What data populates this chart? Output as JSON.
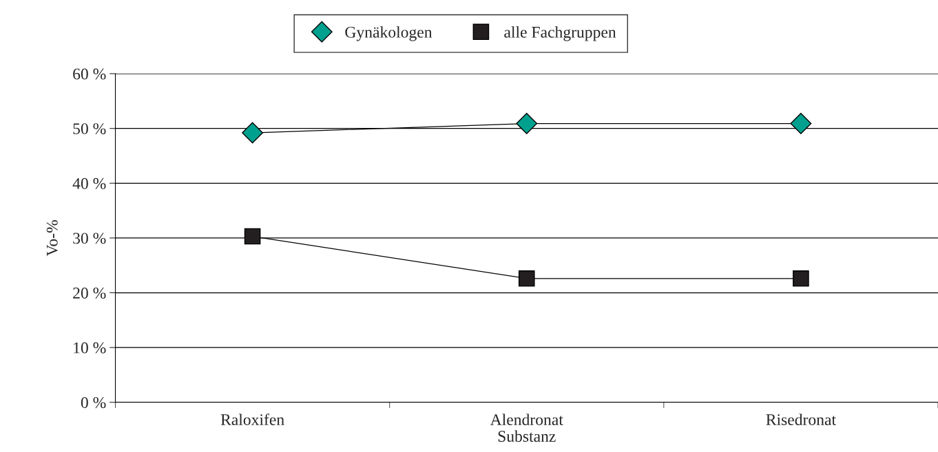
{
  "chart_data": {
    "type": "line",
    "xlabel": "Substanz",
    "ylabel": "Vo-%",
    "categories": [
      "Raloxifen",
      "Alendronat",
      "Risedronat"
    ],
    "series": [
      {
        "name": "Gynäkologen",
        "color": "#00a08e",
        "marker": "diamond",
        "values": [
          49.2,
          50.9,
          50.9
        ]
      },
      {
        "name": "alle Fachgruppen",
        "color": "#231f20",
        "marker": "square",
        "values": [
          30.3,
          22.6,
          22.6
        ]
      }
    ],
    "ylim": [
      0,
      60
    ],
    "yticks": [
      {
        "value": 0,
        "label": "0 %"
      },
      {
        "value": 10,
        "label": "10 %"
      },
      {
        "value": 20,
        "label": "20 %"
      },
      {
        "value": 30,
        "label": "30 %"
      },
      {
        "value": 40,
        "label": "40 %"
      },
      {
        "value": 50,
        "label": "50 %"
      },
      {
        "value": 60,
        "label": "60 %"
      }
    ],
    "grid": "y",
    "legend": "top",
    "line_style": "solid"
  }
}
